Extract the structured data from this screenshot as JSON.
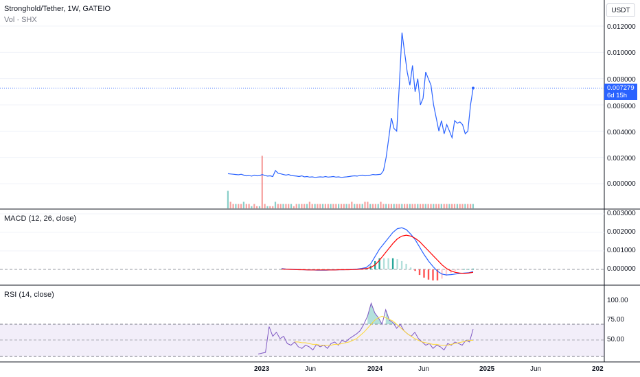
{
  "header": {
    "symbol_title": "Stronghold/Tether, 1W, GATEIO",
    "volume_label": "Vol · SHX",
    "currency_button": "USDT"
  },
  "price_tag": {
    "price": "0.007279",
    "countdown": "6d 15h",
    "color": "#2962ff"
  },
  "price_axis": [
    "0.012000",
    "0.010000",
    "0.008000",
    "0.006000",
    "0.004000",
    "0.002000",
    "0.000000"
  ],
  "macd": {
    "label": "MACD (12, 26, close)",
    "axis": [
      "0.003000",
      "0.002000",
      "0.001000",
      "0.000000"
    ],
    "macd_color": "#2962ff",
    "signal_color": "#ff0000"
  },
  "rsi": {
    "label": "RSI (14, close)",
    "axis": [
      "100.00",
      "75.00",
      "50.00"
    ],
    "rsi_color": "#7e57c2",
    "ma_color": "#fdd835"
  },
  "time_axis": [
    {
      "label": "2023",
      "bold": true
    },
    {
      "label": "Jun",
      "bold": false
    },
    {
      "label": "2024",
      "bold": true
    },
    {
      "label": "Jun",
      "bold": false
    },
    {
      "label": "2025",
      "bold": true
    },
    {
      "label": "Jun",
      "bold": false
    },
    {
      "label": "202",
      "bold": true
    }
  ],
  "chart_data": {
    "type": "line",
    "price_series": [
      0.00076,
      0.00074,
      0.00072,
      0.0007,
      0.00068,
      0.00072,
      0.00065,
      0.0006,
      0.00062,
      0.00058,
      0.00065,
      0.0006,
      0.00062,
      0.0007,
      0.00062,
      0.00058,
      0.0006,
      0.00055,
      0.001,
      0.0008,
      0.00075,
      0.0007,
      0.00065,
      0.0007,
      0.00062,
      0.0006,
      0.00058,
      0.00055,
      0.0006,
      0.00052,
      0.00055,
      0.0005,
      0.00052,
      0.00048,
      0.0005,
      0.00052,
      0.0005,
      0.00055,
      0.0005,
      0.00052,
      0.00055,
      0.0005,
      0.00052,
      0.00048,
      0.0005,
      0.00052,
      0.00055,
      0.00058,
      0.0006,
      0.00058,
      0.00062,
      0.00065,
      0.0006,
      0.00062,
      0.00065,
      0.0007,
      0.00068,
      0.0007,
      0.00072,
      0.001,
      0.002,
      0.0035,
      0.005,
      0.0042,
      0.004,
      0.0075,
      0.0115,
      0.01,
      0.0085,
      0.0075,
      0.009,
      0.007,
      0.008,
      0.006,
      0.0065,
      0.0085,
      0.008,
      0.0075,
      0.006,
      0.005,
      0.004,
      0.0048,
      0.0038,
      0.0045,
      0.004,
      0.0035,
      0.0048,
      0.0046,
      0.0047,
      0.0045,
      0.0038,
      0.004,
      0.006,
      0.00728
    ],
    "volume_series": [
      8,
      3,
      2,
      2,
      2,
      2,
      3,
      2,
      2,
      1,
      2,
      1,
      1,
      24,
      2,
      1,
      1,
      1,
      3,
      2,
      2,
      2,
      2,
      2,
      2,
      1,
      2,
      2,
      2,
      2,
      2,
      3,
      2,
      2,
      2,
      2,
      2,
      2,
      2,
      2,
      2,
      2,
      2,
      2,
      2,
      2,
      2,
      3,
      2,
      2,
      2,
      2,
      3,
      3,
      2,
      2,
      2,
      2,
      3,
      2,
      2,
      2,
      2,
      2,
      2,
      2,
      2,
      2,
      2,
      2,
      2,
      2,
      2,
      2,
      2,
      2,
      2,
      2,
      2,
      2,
      2,
      2,
      2,
      2,
      2,
      2,
      2,
      2,
      2,
      2,
      2,
      2,
      2,
      2
    ],
    "macd_series": [
      4e-05,
      2e-05,
      1e-05,
      0.0,
      -1e-05,
      -2e-05,
      -3e-05,
      -3e-05,
      -4e-05,
      -4e-05,
      -4e-05,
      -3e-05,
      -3e-05,
      -2e-05,
      -2e-05,
      -1e-05,
      0.0,
      2e-05,
      5e-05,
      0.0001,
      0.0003,
      0.0007,
      0.0011,
      0.0014,
      0.0017,
      0.002,
      0.0022,
      0.00225,
      0.00215,
      0.0019,
      0.0016,
      0.0012,
      0.0008,
      0.00045,
      0.00015,
      -0.0001,
      -0.00025,
      -0.0003,
      -0.00028,
      -0.00025,
      -0.00022,
      -0.0002,
      -0.00018,
      -0.00012
    ],
    "signal_series": [
      2e-05,
      1e-05,
      0.0,
      -1e-05,
      -2e-05,
      -2e-05,
      -3e-05,
      -3e-05,
      -3e-05,
      -3e-05,
      -3e-05,
      -3e-05,
      -3e-05,
      -2e-05,
      -2e-05,
      -2e-05,
      -1e-05,
      0.0,
      2e-05,
      4e-05,
      0.0001,
      0.00025,
      0.0005,
      0.0008,
      0.0011,
      0.0014,
      0.00165,
      0.0018,
      0.00185,
      0.0018,
      0.00168,
      0.0015,
      0.00125,
      0.001,
      0.00075,
      0.0005,
      0.00025,
      5e-05,
      -8e-05,
      -0.00016,
      -0.0002,
      -0.00022,
      -0.0002,
      -0.00016
    ],
    "rsi_series": [
      33,
      34,
      35,
      67,
      55,
      60,
      52,
      55,
      46,
      44,
      48,
      42,
      40,
      44,
      42,
      38,
      45,
      42,
      44,
      40,
      46,
      48,
      44,
      50,
      48,
      52,
      55,
      58,
      62,
      70,
      80,
      96,
      84,
      78,
      70,
      88,
      75,
      72,
      65,
      70,
      62,
      58,
      55,
      60,
      52,
      48,
      44,
      46,
      40,
      44,
      42,
      38,
      46,
      44,
      48,
      46,
      44,
      50,
      48,
      64
    ],
    "rsi_ma_series": [
      null,
      null,
      null,
      null,
      null,
      null,
      null,
      null,
      null,
      null,
      48,
      48,
      47,
      47,
      46,
      45,
      45,
      44,
      44,
      44,
      44,
      45,
      45,
      46,
      47,
      48,
      50,
      52,
      56,
      60,
      65,
      70,
      75,
      78,
      80,
      78,
      76,
      74,
      70,
      66,
      62,
      58,
      55,
      52,
      50,
      48,
      47,
      46,
      45,
      45,
      44,
      44,
      44,
      45,
      46,
      47,
      48,
      49,
      50,
      50
    ],
    "price_range": [
      -0.0009,
      0.0127
    ],
    "macd_range": [
      -0.0006,
      0.0031
    ],
    "rsi_range": [
      25,
      105
    ]
  }
}
